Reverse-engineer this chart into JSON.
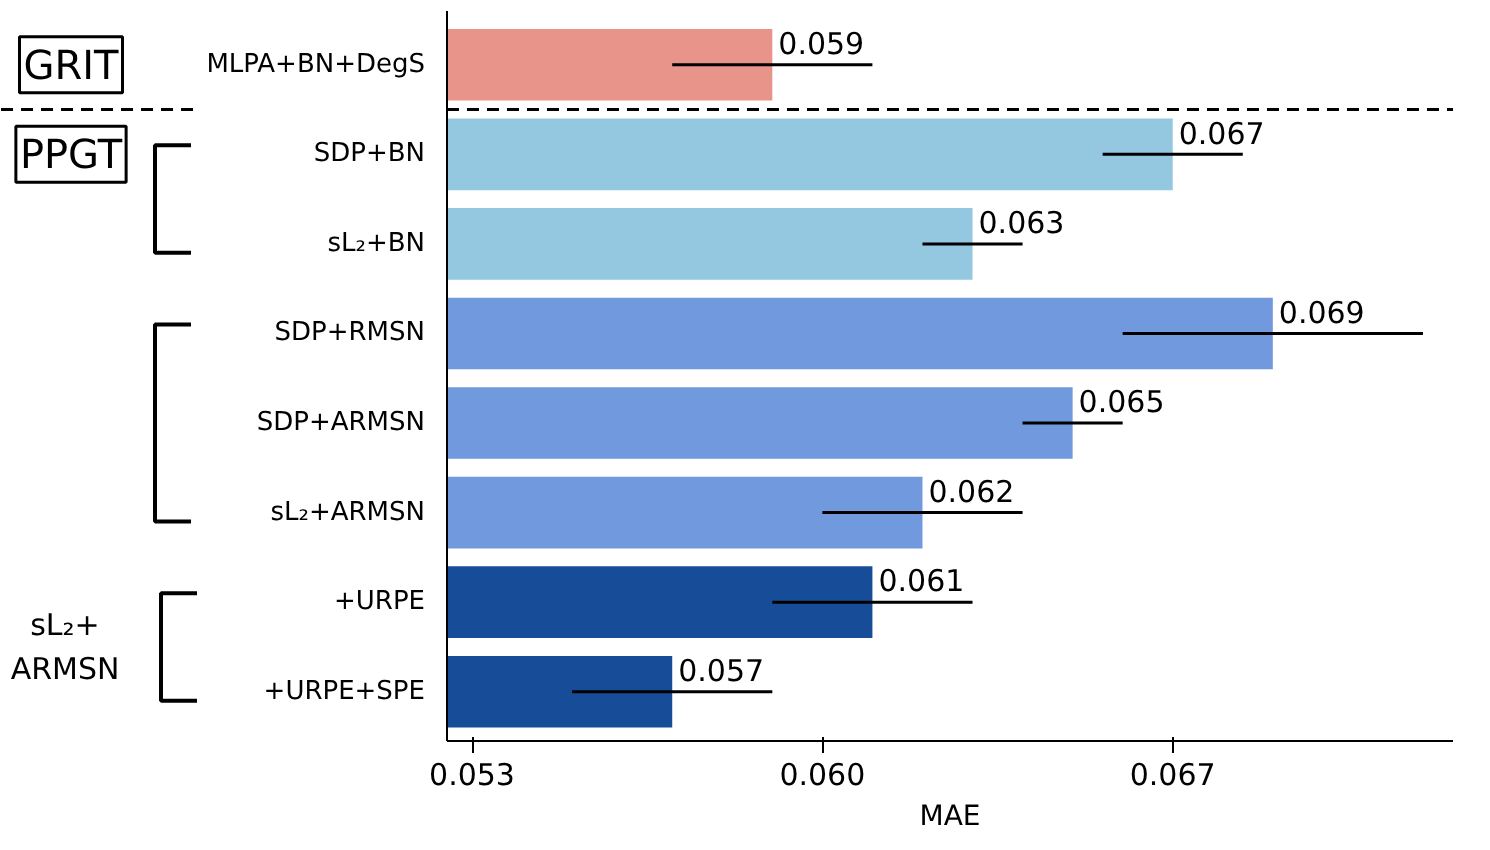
{
  "chart_data": {
    "type": "bar",
    "orientation": "horizontal",
    "xlabel": "MAE",
    "categories": [
      "MLPA+BN+DegS",
      "SDP+BN",
      "sL₂+BN",
      "SDP+RMSN",
      "SDP+ARMSN",
      "sL₂+ARMSN",
      "+URPE",
      "+URPE+SPE"
    ],
    "values": [
      0.059,
      0.067,
      0.063,
      0.069,
      0.065,
      0.062,
      0.061,
      0.057
    ],
    "colors": [
      "#e8948a",
      "#93c8e0",
      "#93c8e0",
      "#7199dd",
      "#7199dd",
      "#7199dd",
      "#174c98",
      "#174c98"
    ],
    "errors": [
      0.002,
      0.0014,
      0.001,
      0.003,
      0.001,
      0.002,
      0.002,
      0.002
    ],
    "data_labels": true,
    "xlim": [
      0.0525,
      0.0726
    ],
    "xticks": [
      0.053,
      {
        "value": 0.06,
        "label": "0.060"
      },
      0.067
    ],
    "grid": false,
    "annotations": [
      "GRIT",
      "PPGT",
      "sL₂+ ARMSN"
    ]
  }
}
